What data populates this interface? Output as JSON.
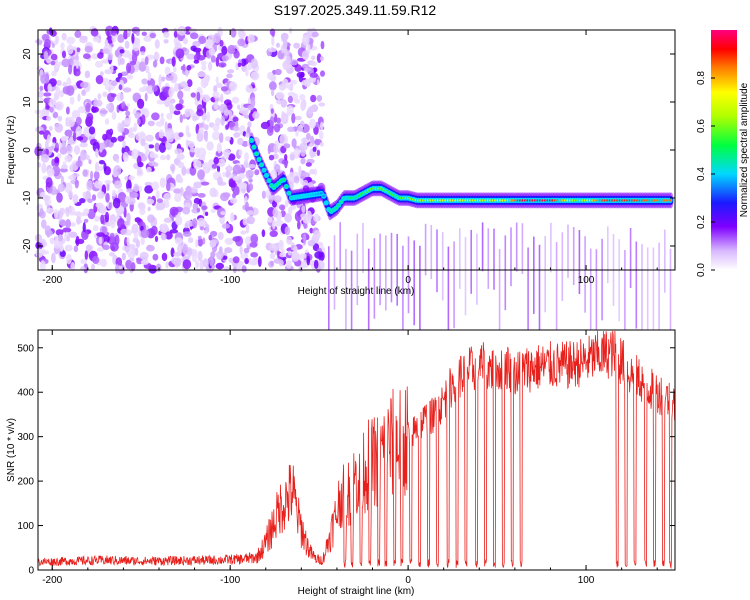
{
  "title": "S197.2025.349.11.59.R12",
  "colors": {
    "snr_line": "#e8201c",
    "axis": "#000000",
    "spectrum_low": "#ffffff",
    "spectrum_mid": "#7f00ff",
    "spectrum_high": "#ff0000"
  },
  "chart_data": [
    {
      "type": "heatmap",
      "name": "spectrogram",
      "xlabel": "Height of straight line (km)",
      "ylabel": "Frequency (Hz)",
      "xlim": [
        -208,
        150
      ],
      "ylim": [
        -25,
        25
      ],
      "xticks": [
        -200,
        -100,
        0,
        100
      ],
      "xtick_labels": [
        "-200",
        "-100",
        "0",
        "100"
      ],
      "yticks": [
        20,
        10,
        0,
        -10,
        -20
      ],
      "ytick_labels": [
        "20",
        "10",
        "0",
        "-10",
        "-20"
      ],
      "colorbar": {
        "label": "Normalized spectral amplitude",
        "range": [
          0,
          1
        ],
        "ticks": [
          0.0,
          0.2,
          0.4,
          0.6,
          0.8
        ],
        "tick_labels": [
          "0.0",
          "0.2",
          "0.4",
          "0.6",
          "0.8"
        ]
      },
      "noise_region_x": [
        -208,
        -48
      ],
      "gap_x": [
        -85,
        -78
      ],
      "ridge": [
        {
          "x": -88,
          "y": 2,
          "amp": 0.45
        },
        {
          "x": -85,
          "y": -1,
          "amp": 0.5
        },
        {
          "x": -80,
          "y": -5,
          "amp": 0.4
        },
        {
          "x": -76,
          "y": -8,
          "amp": 0.5
        },
        {
          "x": -70,
          "y": -6,
          "amp": 0.5
        },
        {
          "x": -66,
          "y": -10,
          "amp": 0.45
        },
        {
          "x": -48,
          "y": -9,
          "amp": 0.35
        },
        {
          "x": -44,
          "y": -13,
          "amp": 0.45
        },
        {
          "x": -40,
          "y": -12,
          "amp": 0.5
        },
        {
          "x": -36,
          "y": -10,
          "amp": 0.45
        },
        {
          "x": -30,
          "y": -10,
          "amp": 0.5
        },
        {
          "x": -25,
          "y": -9,
          "amp": 0.55
        },
        {
          "x": -20,
          "y": -8,
          "amp": 0.6
        },
        {
          "x": -15,
          "y": -8,
          "amp": 0.6
        },
        {
          "x": -10,
          "y": -9,
          "amp": 0.55
        },
        {
          "x": -5,
          "y": -10,
          "amp": 0.55
        },
        {
          "x": 0,
          "y": -10,
          "amp": 0.6
        },
        {
          "x": 5,
          "y": -10.5,
          "amp": 0.65
        },
        {
          "x": 15,
          "y": -10.5,
          "amp": 0.7
        },
        {
          "x": 25,
          "y": -10.5,
          "amp": 0.75
        },
        {
          "x": 35,
          "y": -10.5,
          "amp": 0.7
        },
        {
          "x": 45,
          "y": -10.5,
          "amp": 0.7
        },
        {
          "x": 55,
          "y": -10.5,
          "amp": 0.75
        },
        {
          "x": 65,
          "y": -10.5,
          "amp": 0.95
        },
        {
          "x": 80,
          "y": -10.5,
          "amp": 0.95
        },
        {
          "x": 95,
          "y": -10.5,
          "amp": 0.6
        },
        {
          "x": 110,
          "y": -10.5,
          "amp": 0.9
        },
        {
          "x": 125,
          "y": -10.5,
          "amp": 0.9
        },
        {
          "x": 140,
          "y": -10.5,
          "amp": 0.85
        }
      ]
    },
    {
      "type": "line",
      "name": "snr",
      "xlabel": "Height of straight line (km)",
      "ylabel": "SNR (10 * v/v)",
      "xlim": [
        -208,
        150
      ],
      "ylim": [
        0,
        540
      ],
      "xticks": [
        -200,
        -100,
        0,
        100
      ],
      "xtick_labels": [
        "-200",
        "-100",
        "0",
        "100"
      ],
      "yticks": [
        0,
        100,
        200,
        300,
        400,
        500
      ],
      "ytick_labels": [
        "0",
        "100",
        "200",
        "300",
        "400",
        "500"
      ],
      "series": [
        {
          "name": "SNR",
          "x": [
            -208,
            -190,
            -170,
            -150,
            -130,
            -110,
            -95,
            -85,
            -80,
            -75,
            -72,
            -68,
            -65,
            -62,
            -58,
            -55,
            -52,
            -48,
            -40,
            -38,
            -35,
            -30,
            -25,
            -20,
            -15,
            -10,
            -5,
            0,
            5,
            10,
            15,
            20,
            25,
            30,
            35,
            40,
            45,
            50,
            55,
            60,
            65,
            70,
            80,
            90,
            100,
            105,
            110,
            115,
            120,
            125,
            130,
            135,
            140,
            145,
            148,
            150
          ],
          "values": [
            18,
            20,
            22,
            20,
            21,
            22,
            24,
            28,
            60,
            110,
            140,
            160,
            180,
            120,
            70,
            40,
            25,
            22,
            130,
            170,
            160,
            200,
            230,
            240,
            260,
            280,
            290,
            300,
            320,
            340,
            350,
            380,
            420,
            440,
            450,
            460,
            455,
            450,
            460,
            440,
            450,
            455,
            460,
            460,
            470,
            480,
            485,
            490,
            470,
            440,
            430,
            410,
            400,
            390,
            380,
            370
          ],
          "dropouts": [
            [
              -36,
              -35
            ],
            [
              -32,
              -31
            ],
            [
              -27,
              -26
            ],
            [
              -22,
              -21
            ],
            [
              -17,
              -16
            ],
            [
              -13,
              -12
            ],
            [
              -8,
              -7
            ],
            [
              -4,
              -3
            ],
            [
              1,
              2
            ],
            [
              6,
              7
            ],
            [
              11,
              12
            ],
            [
              16,
              17
            ],
            [
              22,
              23
            ],
            [
              27,
              28
            ],
            [
              32,
              33
            ],
            [
              38,
              39
            ],
            [
              43,
              44
            ],
            [
              48,
              49
            ],
            [
              53,
              54
            ],
            [
              58,
              59
            ],
            [
              63,
              64
            ],
            [
              117,
              118
            ],
            [
              122,
              123
            ],
            [
              127,
              128
            ],
            [
              133,
              134
            ],
            [
              138,
              139
            ],
            [
              143,
              144
            ],
            [
              147,
              148
            ]
          ]
        }
      ]
    }
  ]
}
